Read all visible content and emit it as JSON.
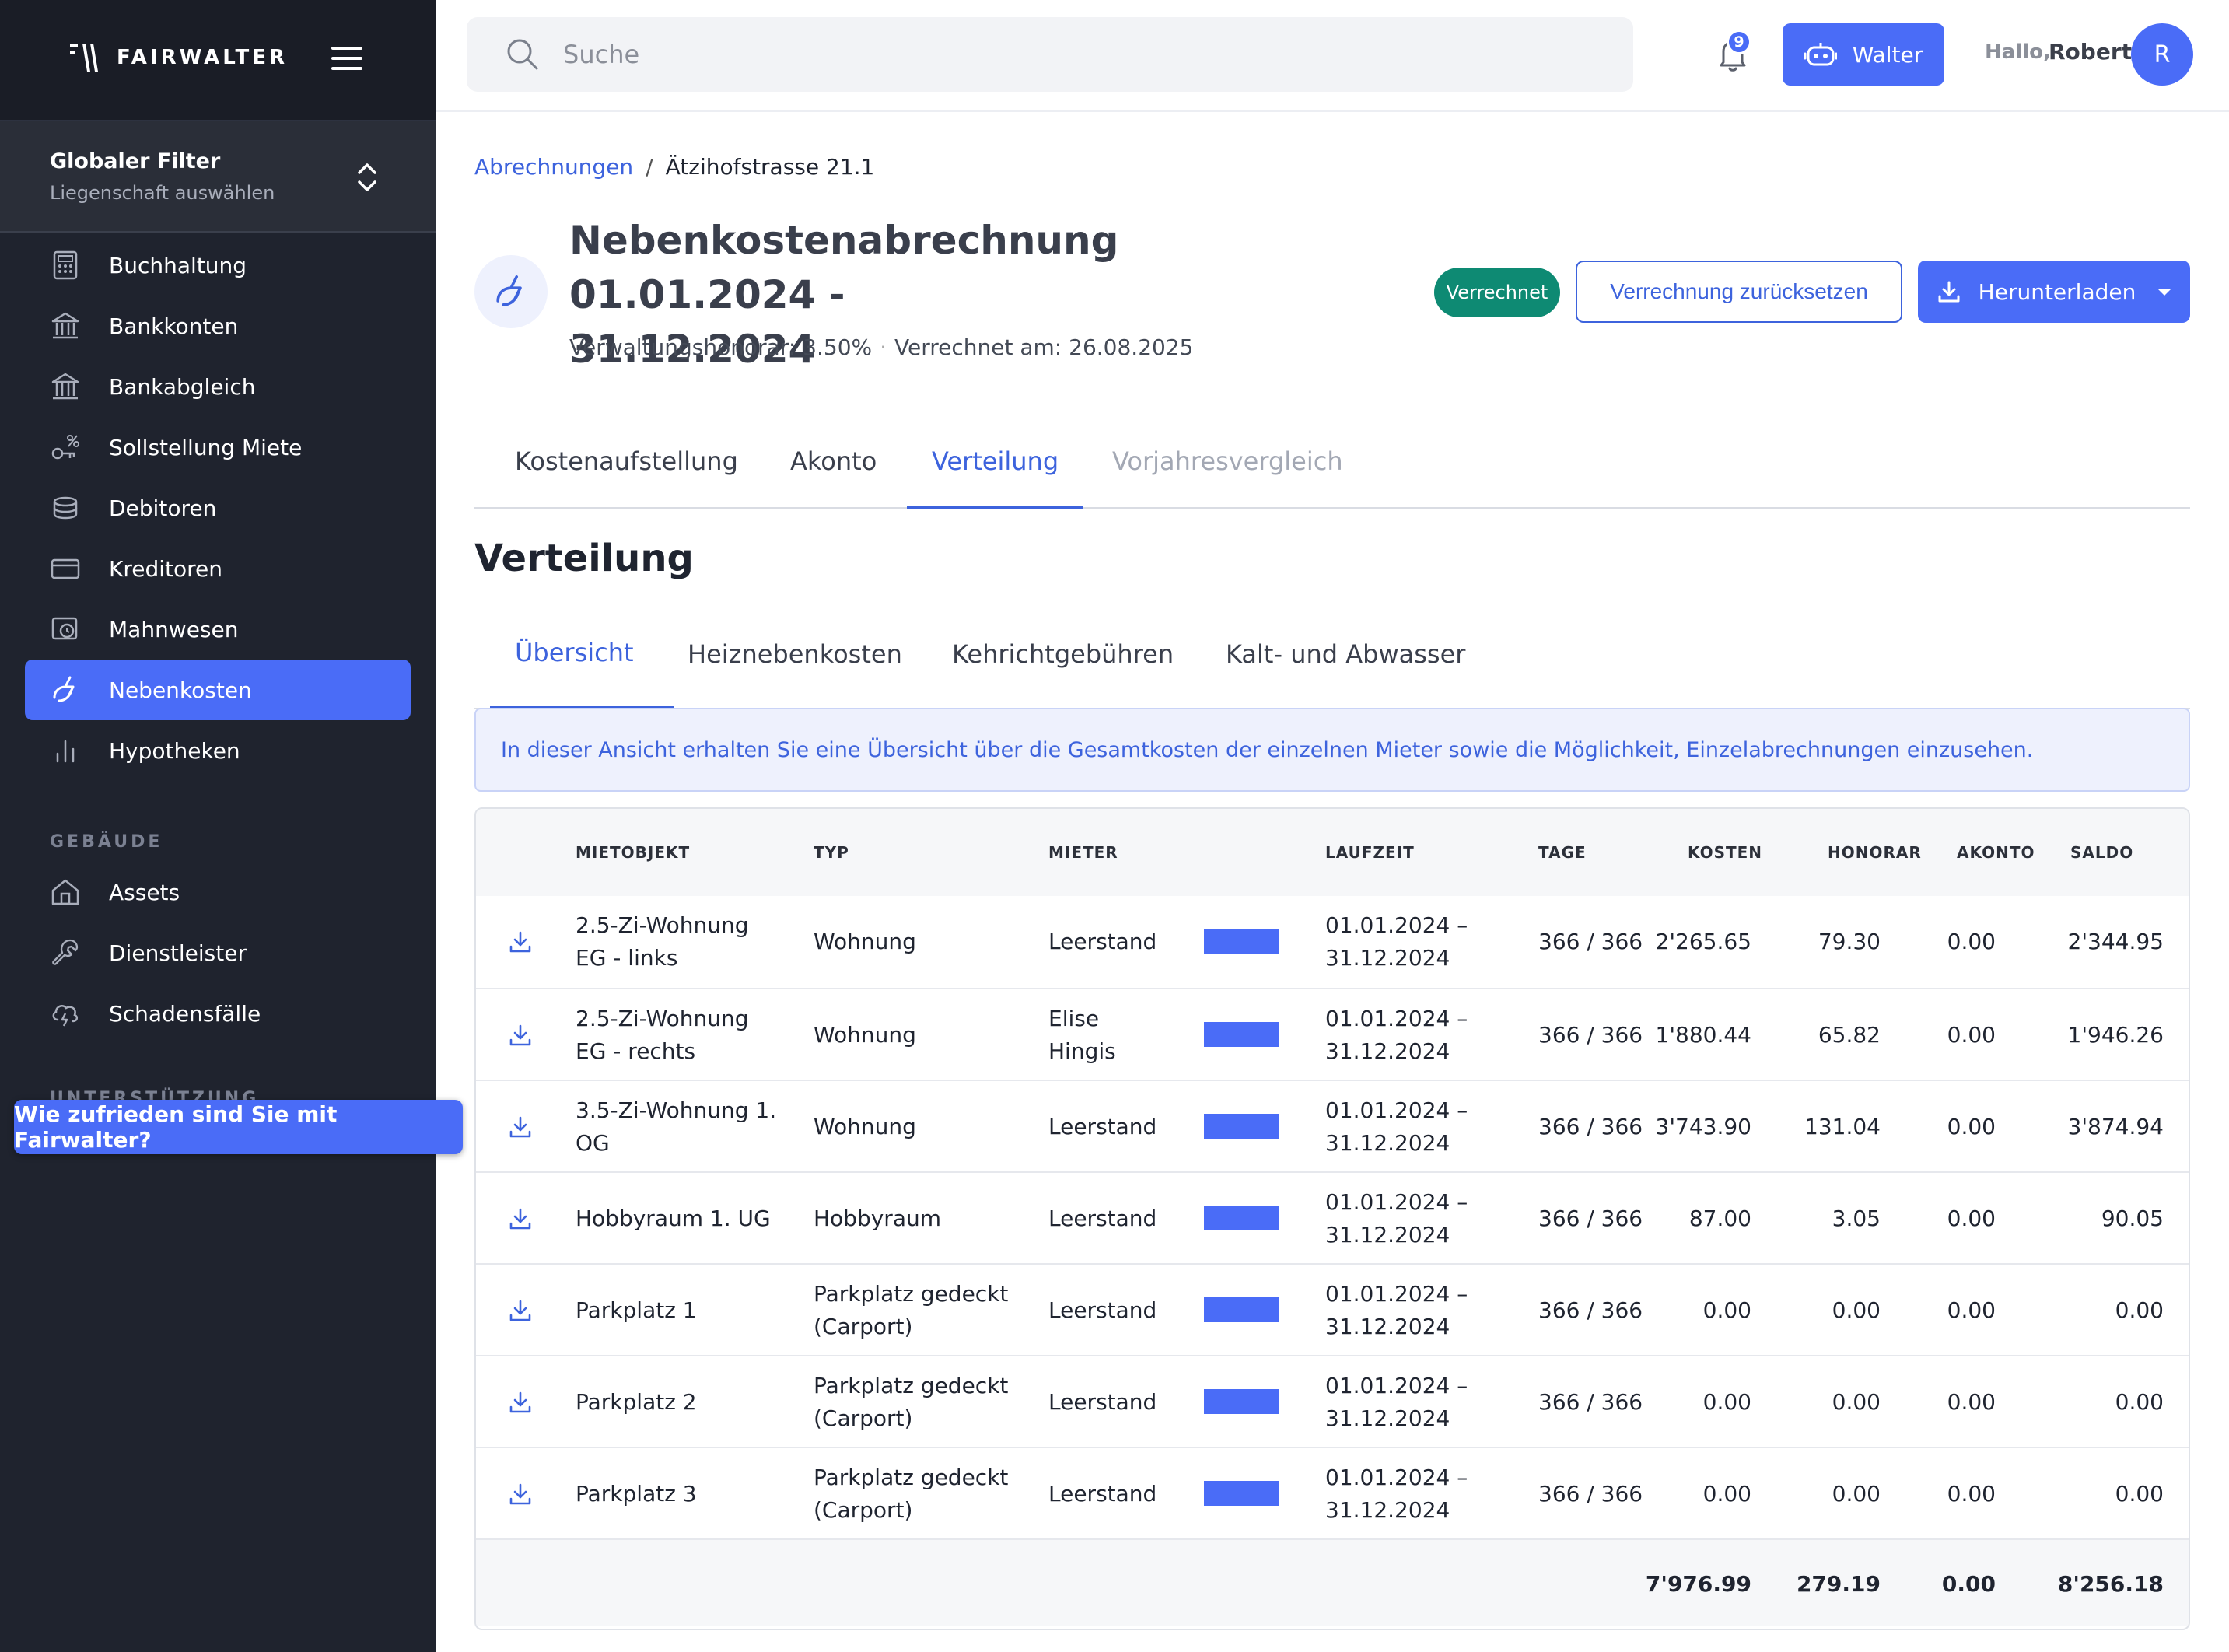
{
  "app": {
    "brand": "FAIRWALTER",
    "colors": {
      "accent": "#4a6cf7",
      "sidebar": "#1f232e",
      "status_green": "#0e8a73"
    }
  },
  "sidebar": {
    "global_filter": {
      "title": "Globaler Filter",
      "subtitle": "Liegenschaft auswählen"
    },
    "items": [
      {
        "label": "Buchhaltung",
        "icon": "calculator-icon"
      },
      {
        "label": "Bankkonten",
        "icon": "bank-icon"
      },
      {
        "label": "Bankabgleich",
        "icon": "bank-icon"
      },
      {
        "label": "Sollstellung Miete",
        "icon": "rent-icon"
      },
      {
        "label": "Debitoren",
        "icon": "coins-icon"
      },
      {
        "label": "Kreditoren",
        "icon": "card-icon"
      },
      {
        "label": "Mahnwesen",
        "icon": "reminder-icon"
      },
      {
        "label": "Nebenkosten",
        "icon": "utilities-icon",
        "active": true
      },
      {
        "label": "Hypotheken",
        "icon": "chart-icon"
      }
    ],
    "section_buildings": "GEBÄUDE",
    "building_items": [
      {
        "label": "Assets",
        "icon": "home-icon"
      },
      {
        "label": "Dienstleister",
        "icon": "wrench-icon"
      },
      {
        "label": "Schadensfälle",
        "icon": "damage-icon"
      }
    ],
    "section_support": "UNTERSTÜTZUNG",
    "feedback_label": "Wie zufrieden sind Sie mit Fairwalter?"
  },
  "topbar": {
    "search_placeholder": "Suche",
    "notifications_count": "9",
    "walter_label": "Walter",
    "greeting": "Hallo,",
    "username": "Robert",
    "avatar_initial": "R"
  },
  "breadcrumb": {
    "parent": "Abrechnungen",
    "separator": "/",
    "current": "Ätzihofstrasse 21.1"
  },
  "header": {
    "title_line1": "Nebenkostenabrechnung 01.01.2024 -",
    "title_line2": "31.12.2024",
    "fee": "Verwaltungshonorar: 3.50%",
    "dot": "·",
    "settled": "Verrechnet am: 26.08.2025",
    "status": "Verrechnet",
    "reset_label": "Verrechnung zurücksetzen",
    "download_label": "Herunterladen"
  },
  "tabs": [
    {
      "label": "Kostenaufstellung"
    },
    {
      "label": "Akonto"
    },
    {
      "label": "Verteilung",
      "active": true
    },
    {
      "label": "Vorjahresvergleich",
      "disabled": true
    }
  ],
  "section": {
    "title": "Verteilung",
    "subtabs": [
      {
        "label": "Übersicht",
        "active": true
      },
      {
        "label": "Heiznebenkosten"
      },
      {
        "label": "Kehrichtgebühren"
      },
      {
        "label": "Kalt- und Abwasser"
      }
    ],
    "info": "In dieser Ansicht erhalten Sie eine Übersicht über die Gesamtkosten der einzelnen Mieter sowie die Möglichkeit, Einzelabrechnungen einzusehen."
  },
  "table": {
    "columns": [
      "MIETOBJEKT",
      "TYP",
      "MIETER",
      "LAUFZEIT",
      "TAGE",
      "KOSTEN",
      "HONORAR",
      "AKONTO",
      "SALDO"
    ],
    "rows": [
      {
        "object": [
          "2.5-Zi-Wohnung",
          "EG - links"
        ],
        "type": [
          "Wohnung"
        ],
        "tenant": [
          "Leerstand"
        ],
        "period": [
          "01.01.2024 –",
          "31.12.2024"
        ],
        "days": "366 / 366",
        "cost": "2'265.65",
        "fee": "79.30",
        "akonto": "0.00",
        "saldo": "2'344.95",
        "occupancy": 1
      },
      {
        "object": [
          "2.5-Zi-Wohnung",
          "EG - rechts"
        ],
        "type": [
          "Wohnung"
        ],
        "tenant": [
          "Elise",
          "Hingis"
        ],
        "period": [
          "01.01.2024 –",
          "31.12.2024"
        ],
        "days": "366 / 366",
        "cost": "1'880.44",
        "fee": "65.82",
        "akonto": "0.00",
        "saldo": "1'946.26",
        "occupancy": 1
      },
      {
        "object": [
          "3.5-Zi-Wohnung 1.",
          "OG"
        ],
        "type": [
          "Wohnung"
        ],
        "tenant": [
          "Leerstand"
        ],
        "period": [
          "01.01.2024 –",
          "31.12.2024"
        ],
        "days": "366 / 366",
        "cost": "3'743.90",
        "fee": "131.04",
        "akonto": "0.00",
        "saldo": "3'874.94",
        "occupancy": 1
      },
      {
        "object": [
          "Hobbyraum 1. UG"
        ],
        "type": [
          "Hobbyraum"
        ],
        "tenant": [
          "Leerstand"
        ],
        "period": [
          "01.01.2024 –",
          "31.12.2024"
        ],
        "days": "366 / 366",
        "cost": "87.00",
        "fee": "3.05",
        "akonto": "0.00",
        "saldo": "90.05",
        "occupancy": 1
      },
      {
        "object": [
          "Parkplatz 1"
        ],
        "type": [
          "Parkplatz gedeckt",
          "(Carport)"
        ],
        "tenant": [
          "Leerstand"
        ],
        "period": [
          "01.01.2024 –",
          "31.12.2024"
        ],
        "days": "366 / 366",
        "cost": "0.00",
        "fee": "0.00",
        "akonto": "0.00",
        "saldo": "0.00",
        "occupancy": 1
      },
      {
        "object": [
          "Parkplatz 2"
        ],
        "type": [
          "Parkplatz gedeckt",
          "(Carport)"
        ],
        "tenant": [
          "Leerstand"
        ],
        "period": [
          "01.01.2024 –",
          "31.12.2024"
        ],
        "days": "366 / 366",
        "cost": "0.00",
        "fee": "0.00",
        "akonto": "0.00",
        "saldo": "0.00",
        "occupancy": 1
      },
      {
        "object": [
          "Parkplatz 3"
        ],
        "type": [
          "Parkplatz gedeckt",
          "(Carport)"
        ],
        "tenant": [
          "Leerstand"
        ],
        "period": [
          "01.01.2024 –",
          "31.12.2024"
        ],
        "days": "366 / 366",
        "cost": "0.00",
        "fee": "0.00",
        "akonto": "0.00",
        "saldo": "0.00",
        "occupancy": 1
      }
    ],
    "totals": {
      "cost": "7'976.99",
      "fee": "279.19",
      "akonto": "0.00",
      "saldo": "8'256.18"
    }
  }
}
